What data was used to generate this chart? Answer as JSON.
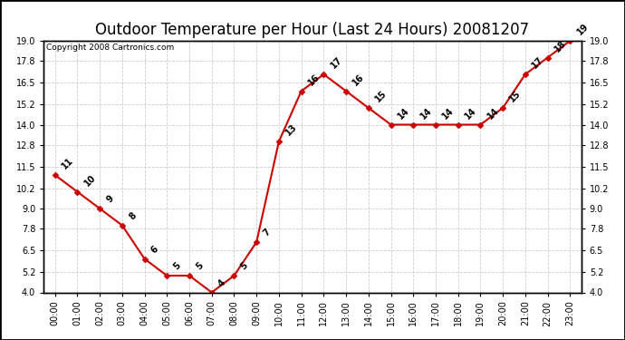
{
  "title": "Outdoor Temperature per Hour (Last 24 Hours) 20081207",
  "copyright": "Copyright 2008 Cartronics.com",
  "hours": [
    "00:00",
    "01:00",
    "02:00",
    "03:00",
    "04:00",
    "05:00",
    "06:00",
    "07:00",
    "08:00",
    "09:00",
    "10:00",
    "11:00",
    "12:00",
    "13:00",
    "14:00",
    "15:00",
    "16:00",
    "17:00",
    "18:00",
    "19:00",
    "20:00",
    "21:00",
    "22:00",
    "23:00"
  ],
  "temperatures": [
    11,
    10,
    9,
    8,
    6,
    5,
    5,
    4,
    5,
    7,
    13,
    16,
    17,
    16,
    15,
    14,
    14,
    14,
    14,
    14,
    15,
    17,
    18,
    19
  ],
  "line_color": "#cc0000",
  "marker_color": "#cc0000",
  "marker_size": 3,
  "bg_color": "#ffffff",
  "plot_bg_color": "#ffffff",
  "grid_color": "#cccccc",
  "ylim": [
    4.0,
    19.0
  ],
  "yticks_left": [
    4.0,
    5.2,
    6.5,
    7.8,
    9.0,
    10.2,
    11.5,
    12.8,
    14.0,
    15.2,
    16.5,
    17.8,
    19.0
  ],
  "title_fontsize": 12,
  "copyright_fontsize": 6.5,
  "label_fontsize": 7,
  "tick_fontsize": 7
}
